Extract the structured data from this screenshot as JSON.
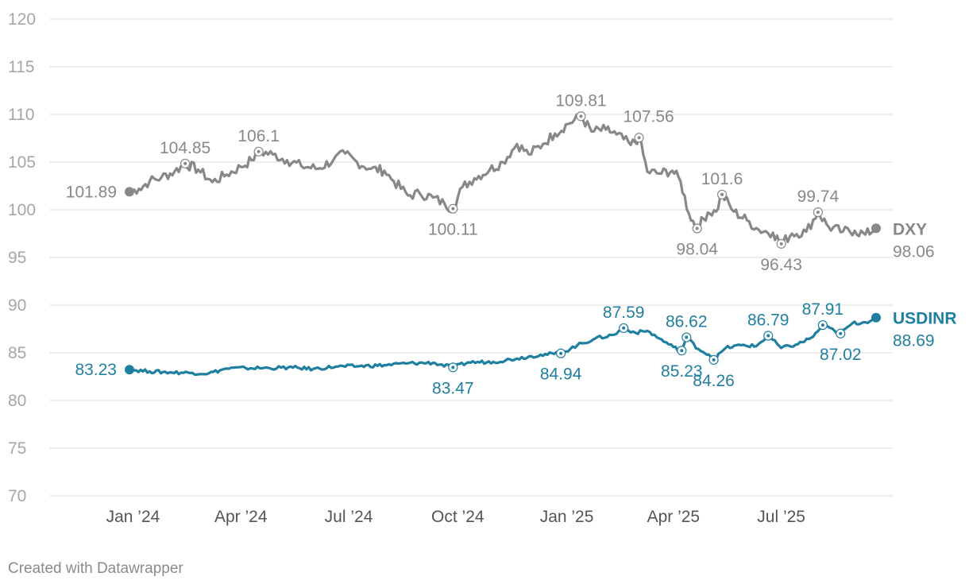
{
  "credit": "Created with Datawrapper",
  "colors": {
    "dxy": "#888888",
    "usdinr": "#1f7fa0",
    "grid": "#dddddd"
  },
  "chart_data": {
    "type": "line",
    "title": "",
    "xlabel": "",
    "ylabel": "",
    "ylim": [
      70,
      120
    ],
    "y_ticks": [
      70,
      75,
      80,
      85,
      90,
      95,
      100,
      105,
      110,
      115,
      120
    ],
    "x_range": [
      "2023-12-29",
      "2025-09-19"
    ],
    "x_ticks": [
      {
        "date": "2024-01-01",
        "label": "Jan ’24"
      },
      {
        "date": "2024-04-01",
        "label": "Apr ’24"
      },
      {
        "date": "2024-07-01",
        "label": "Jul ’24"
      },
      {
        "date": "2024-10-01",
        "label": "Oct ’24"
      },
      {
        "date": "2025-01-01",
        "label": "Jan ’25"
      },
      {
        "date": "2025-04-01",
        "label": "Apr ’25"
      },
      {
        "date": "2025-07-01",
        "label": "Jul ’25"
      }
    ],
    "series": [
      {
        "name": "DXY",
        "color": "#888888",
        "points": [
          [
            "2023-12-29",
            101.89
          ],
          [
            "2024-01-06",
            102.2
          ],
          [
            "2024-01-15",
            103.0
          ],
          [
            "2024-01-25",
            103.4
          ],
          [
            "2024-02-05",
            104.0
          ],
          [
            "2024-02-14",
            104.85
          ],
          [
            "2024-02-25",
            104.2
          ],
          [
            "2024-03-08",
            102.9
          ],
          [
            "2024-03-20",
            103.7
          ],
          [
            "2024-04-01",
            104.5
          ],
          [
            "2024-04-10",
            105.2
          ],
          [
            "2024-04-16",
            106.1
          ],
          [
            "2024-04-28",
            105.8
          ],
          [
            "2024-05-10",
            105.2
          ],
          [
            "2024-05-22",
            104.6
          ],
          [
            "2024-06-05",
            104.3
          ],
          [
            "2024-06-18",
            105.2
          ],
          [
            "2024-06-28",
            105.9
          ],
          [
            "2024-07-08",
            105.0
          ],
          [
            "2024-07-20",
            104.3
          ],
          [
            "2024-07-31",
            104.1
          ],
          [
            "2024-08-08",
            103.0
          ],
          [
            "2024-08-20",
            101.5
          ],
          [
            "2024-08-30",
            101.7
          ],
          [
            "2024-09-10",
            101.3
          ],
          [
            "2024-09-20",
            100.6
          ],
          [
            "2024-09-27",
            100.11
          ],
          [
            "2024-10-05",
            102.4
          ],
          [
            "2024-10-15",
            103.3
          ],
          [
            "2024-10-28",
            104.2
          ],
          [
            "2024-11-08",
            105.0
          ],
          [
            "2024-11-20",
            106.9
          ],
          [
            "2024-11-30",
            105.8
          ],
          [
            "2024-12-12",
            106.9
          ],
          [
            "2024-12-22",
            108.0
          ],
          [
            "2025-01-02",
            109.0
          ],
          [
            "2025-01-13",
            109.81
          ],
          [
            "2025-01-22",
            108.2
          ],
          [
            "2025-02-03",
            108.4
          ],
          [
            "2025-02-12",
            107.9
          ],
          [
            "2025-02-24",
            106.8
          ],
          [
            "2025-03-03",
            107.56
          ],
          [
            "2025-03-10",
            104.0
          ],
          [
            "2025-03-20",
            103.8
          ],
          [
            "2025-03-31",
            104.1
          ],
          [
            "2025-04-07",
            103.0
          ],
          [
            "2025-04-14",
            99.6
          ],
          [
            "2025-04-21",
            98.04
          ],
          [
            "2025-04-30",
            99.7
          ],
          [
            "2025-05-07",
            99.8
          ],
          [
            "2025-05-12",
            101.6
          ],
          [
            "2025-05-22",
            99.8
          ],
          [
            "2025-06-02",
            98.9
          ],
          [
            "2025-06-12",
            97.9
          ],
          [
            "2025-06-24",
            97.6
          ],
          [
            "2025-07-01",
            96.43
          ],
          [
            "2025-07-10",
            97.5
          ],
          [
            "2025-07-22",
            97.7
          ],
          [
            "2025-08-01",
            99.74
          ],
          [
            "2025-08-10",
            98.2
          ],
          [
            "2025-08-22",
            97.7
          ],
          [
            "2025-09-01",
            97.8
          ],
          [
            "2025-09-10",
            97.4
          ],
          [
            "2025-09-19",
            98.06
          ]
        ],
        "annotations": [
          {
            "date": "2024-02-14",
            "value": 104.85,
            "label": "104.85",
            "pos": "above"
          },
          {
            "date": "2024-04-16",
            "value": 106.1,
            "label": "106.1",
            "pos": "above"
          },
          {
            "date": "2024-09-27",
            "value": 100.11,
            "label": "100.11",
            "pos": "below"
          },
          {
            "date": "2025-01-13",
            "value": 109.81,
            "label": "109.81",
            "pos": "above"
          },
          {
            "date": "2025-03-03",
            "value": 107.56,
            "label": "107.56",
            "pos": "above-right"
          },
          {
            "date": "2025-04-21",
            "value": 98.04,
            "label": "98.04",
            "pos": "below"
          },
          {
            "date": "2025-05-12",
            "value": 101.6,
            "label": "101.6",
            "pos": "above"
          },
          {
            "date": "2025-07-01",
            "value": 96.43,
            "label": "96.43",
            "pos": "below"
          },
          {
            "date": "2025-08-01",
            "value": 99.74,
            "label": "99.74",
            "pos": "above"
          }
        ],
        "start_label": "101.89",
        "end_label": "98.06"
      },
      {
        "name": "USDINR",
        "color": "#1f7fa0",
        "points": [
          [
            "2023-12-29",
            83.23
          ],
          [
            "2024-01-15",
            83.05
          ],
          [
            "2024-02-01",
            82.95
          ],
          [
            "2024-02-20",
            82.9
          ],
          [
            "2024-03-05",
            82.85
          ],
          [
            "2024-03-20",
            83.35
          ],
          [
            "2024-04-05",
            83.4
          ],
          [
            "2024-04-25",
            83.4
          ],
          [
            "2024-05-15",
            83.45
          ],
          [
            "2024-06-01",
            83.3
          ],
          [
            "2024-06-20",
            83.55
          ],
          [
            "2024-07-10",
            83.6
          ],
          [
            "2024-07-31",
            83.7
          ],
          [
            "2024-08-20",
            83.9
          ],
          [
            "2024-09-10",
            83.95
          ],
          [
            "2024-09-27",
            83.47
          ],
          [
            "2024-10-10",
            84.0
          ],
          [
            "2024-10-31",
            84.05
          ],
          [
            "2024-11-20",
            84.4
          ],
          [
            "2024-12-10",
            84.8
          ],
          [
            "2024-12-27",
            84.94
          ],
          [
            "2025-01-10",
            85.8
          ],
          [
            "2025-01-25",
            86.5
          ],
          [
            "2025-02-10",
            86.9
          ],
          [
            "2025-02-18",
            87.59
          ],
          [
            "2025-02-28",
            87.1
          ],
          [
            "2025-03-10",
            87.3
          ],
          [
            "2025-03-20",
            86.5
          ],
          [
            "2025-04-01",
            85.6
          ],
          [
            "2025-04-08",
            85.23
          ],
          [
            "2025-04-12",
            86.62
          ],
          [
            "2025-04-22",
            85.4
          ],
          [
            "2025-05-01",
            84.8
          ],
          [
            "2025-05-05",
            84.26
          ],
          [
            "2025-05-15",
            85.5
          ],
          [
            "2025-05-28",
            85.8
          ],
          [
            "2025-06-10",
            85.7
          ],
          [
            "2025-06-20",
            86.79
          ],
          [
            "2025-07-01",
            85.5
          ],
          [
            "2025-07-15",
            85.9
          ],
          [
            "2025-07-28",
            86.7
          ],
          [
            "2025-08-05",
            87.91
          ],
          [
            "2025-08-15",
            87.3
          ],
          [
            "2025-08-20",
            87.02
          ],
          [
            "2025-08-30",
            88.1
          ],
          [
            "2025-09-10",
            88.2
          ],
          [
            "2025-09-19",
            88.69
          ]
        ],
        "annotations": [
          {
            "date": "2024-09-27",
            "value": 83.47,
            "label": "83.47",
            "pos": "below"
          },
          {
            "date": "2024-12-27",
            "value": 84.94,
            "label": "84.94",
            "pos": "below"
          },
          {
            "date": "2025-02-18",
            "value": 87.59,
            "label": "87.59",
            "pos": "above"
          },
          {
            "date": "2025-04-08",
            "value": 85.23,
            "label": "85.23",
            "pos": "below"
          },
          {
            "date": "2025-04-12",
            "value": 86.62,
            "label": "86.62",
            "pos": "above"
          },
          {
            "date": "2025-05-05",
            "value": 84.26,
            "label": "84.26",
            "pos": "below"
          },
          {
            "date": "2025-06-20",
            "value": 86.79,
            "label": "86.79",
            "pos": "above"
          },
          {
            "date": "2025-08-05",
            "value": 87.91,
            "label": "87.91",
            "pos": "above"
          },
          {
            "date": "2025-08-20",
            "value": 87.02,
            "label": "87.02",
            "pos": "below"
          }
        ],
        "start_label": "83.23",
        "end_label": "88.69"
      }
    ]
  }
}
